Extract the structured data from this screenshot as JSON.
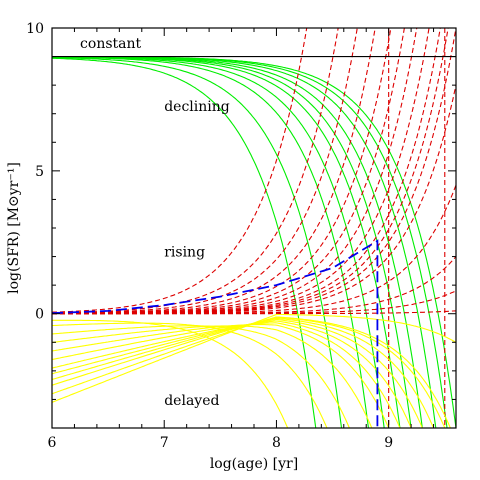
{
  "chart_data": {
    "type": "line",
    "title": "",
    "xlabel": "log(age)  [yr]",
    "ylabel": "log(SFR)  [M⊙yr⁻¹]",
    "xlim": [
      6,
      9.6
    ],
    "ylim": [
      -4,
      10
    ],
    "x_ticks": [
      6,
      7,
      8,
      9
    ],
    "y_ticks": [
      0,
      5,
      10
    ],
    "grid": false,
    "legend": "none",
    "colors": {
      "constant": "#000000",
      "declining": "#00ee00",
      "rising": "#dd0000",
      "delayed": "#ffff00",
      "highlight": "#0000ee"
    },
    "annotations": [
      {
        "text": "constant",
        "x": 6.25,
        "y": 9.3
      },
      {
        "text": "declining",
        "x": 7.0,
        "y": 7.1
      },
      {
        "text": "rising",
        "x": 7.0,
        "y": 2.0
      },
      {
        "text": "delayed",
        "x": 7.0,
        "y": -3.2
      }
    ],
    "families": {
      "constant": {
        "level": 9.0
      },
      "declining": {
        "initial_level": 9.0,
        "curves": 10,
        "crosses_bottom_at_log_age": [
          8.35,
          8.58,
          8.82,
          8.96,
          9.1,
          9.2,
          9.3,
          9.42,
          9.52,
          9.6
        ],
        "level_at_log_age_9_6": [
          4.6,
          5.5,
          6.5,
          7.5,
          8.3
        ]
      },
      "rising": {
        "linestyle": "dashed",
        "initial_level": 0.0,
        "curves": 13,
        "reaches_top_at_log_age": [
          8.27,
          8.55,
          8.72,
          8.88,
          9.02,
          9.14,
          9.25,
          9.36,
          9.46,
          9.53,
          9.6
        ],
        "level_at_log_age_9_6": [
          8.0,
          4.5,
          2.0,
          0.8,
          0.1
        ],
        "vertical_lines_at_log_age": [
          9.0,
          9.5
        ]
      },
      "delayed": {
        "curves": 12,
        "peak_level": 0.0,
        "level_at_log_age_6": [
          -0.2,
          -0.4,
          -0.7,
          -1.0,
          -1.3,
          -1.6,
          -1.9,
          -2.1,
          -2.3,
          -2.5,
          -2.8,
          -3.1
        ],
        "crosses_bottom_at_log_age": [
          8.1,
          8.45,
          8.65,
          8.85,
          9.0,
          9.1,
          9.2,
          9.3,
          9.4,
          9.5,
          9.55
        ]
      },
      "highlight": {
        "linestyle": "long-dashed",
        "x": [
          6.0,
          6.5,
          7.0,
          7.5,
          8.0,
          8.5,
          8.9,
          8.9
        ],
        "y": [
          0.02,
          0.1,
          0.3,
          0.6,
          1.0,
          1.6,
          2.55,
          -4.0
        ]
      }
    }
  }
}
